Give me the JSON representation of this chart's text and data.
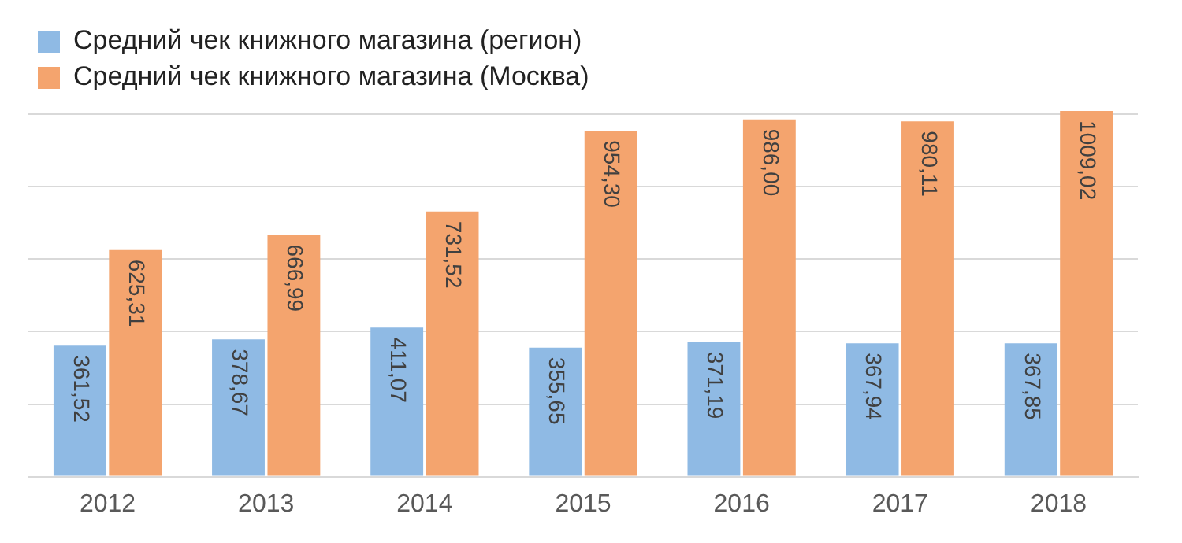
{
  "chart_data": {
    "type": "bar",
    "categories": [
      "2012",
      "2013",
      "2014",
      "2015",
      "2016",
      "2017",
      "2018"
    ],
    "series": [
      {
        "name": "Средний чек книжного магазина (регион)",
        "color": "#8fbae4",
        "values": [
          361.52,
          378.67,
          411.07,
          355.65,
          371.19,
          367.94,
          367.85
        ],
        "value_labels": [
          "361,52",
          "378,67",
          "411,07",
          "355,65",
          "371,19",
          "367,94",
          "367,85"
        ]
      },
      {
        "name": "Средний чек книжного магазина (Москва)",
        "color": "#f4a46e",
        "values": [
          625.31,
          666.99,
          731.52,
          954.3,
          986.0,
          980.11,
          1009.02
        ],
        "value_labels": [
          "625,31",
          "666,99",
          "731,52",
          "954,30",
          "986,00",
          "980,11",
          "1009,02"
        ]
      }
    ],
    "ylim": [
      0,
      1020
    ],
    "yticks": [
      {
        "value": 0,
        "label": null
      },
      {
        "value": 200,
        "label": null
      },
      {
        "value": 400,
        "label": null
      },
      {
        "value": 600,
        "label": null
      },
      {
        "value": 800,
        "label": null
      },
      {
        "value": 1000,
        "label": null
      }
    ],
    "grid": "y",
    "legend": "top left",
    "tick_labels": "x"
  }
}
